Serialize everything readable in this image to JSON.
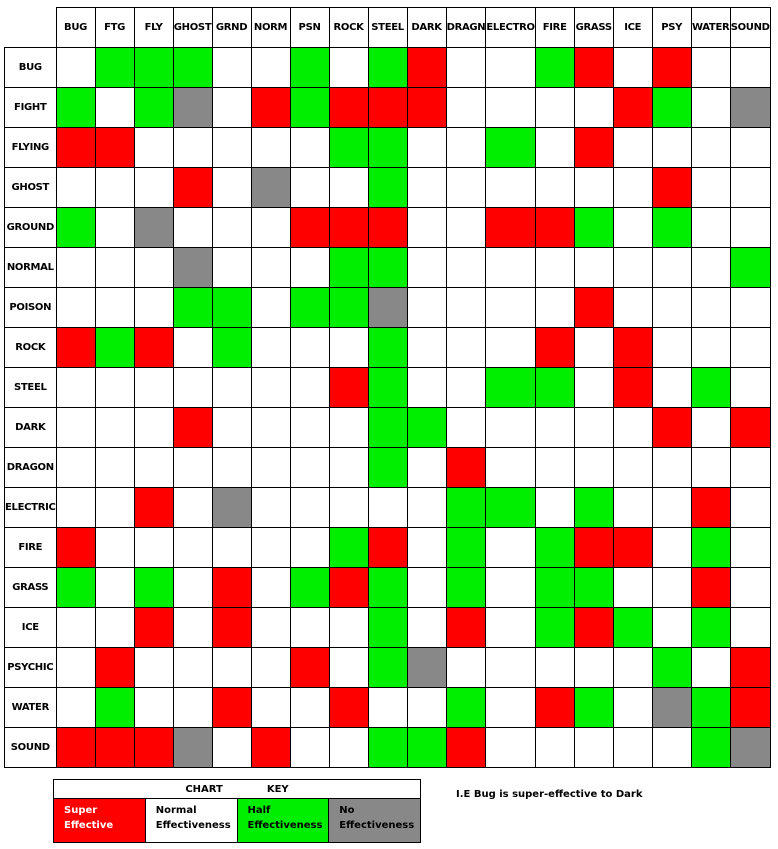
{
  "columns": [
    "BUG",
    "FTG",
    "FLY",
    "GHOST",
    "GRND",
    "NORM",
    "PSN",
    "ROCK",
    "STEEL",
    "DARK",
    "DRAGN",
    "ELECTRO",
    "FIRE",
    "GRASS",
    "ICE",
    "PSY",
    "WATER",
    "SOUND"
  ],
  "rows": [
    {
      "label": "BUG",
      "cells": [
        "n",
        "h",
        "h",
        "h",
        "n",
        "n",
        "h",
        "n",
        "h",
        "s",
        "n",
        "n",
        "h",
        "s",
        "n",
        "s",
        "n",
        "n"
      ]
    },
    {
      "label": "FIGHT",
      "cells": [
        "h",
        "n",
        "h",
        "z",
        "n",
        "s",
        "h",
        "s",
        "s",
        "s",
        "n",
        "n",
        "n",
        "n",
        "s",
        "h",
        "n",
        "z"
      ]
    },
    {
      "label": "FLYING",
      "cells": [
        "s",
        "s",
        "n",
        "n",
        "n",
        "n",
        "n",
        "h",
        "h",
        "n",
        "n",
        "h",
        "n",
        "s",
        "n",
        "n",
        "n",
        "n"
      ]
    },
    {
      "label": "GHOST",
      "cells": [
        "n",
        "n",
        "n",
        "s",
        "n",
        "z",
        "n",
        "n",
        "h",
        "n",
        "n",
        "n",
        "n",
        "n",
        "n",
        "s",
        "n",
        "n"
      ]
    },
    {
      "label": "GROUND",
      "cells": [
        "h",
        "n",
        "z",
        "n",
        "n",
        "n",
        "s",
        "s",
        "s",
        "n",
        "n",
        "s",
        "s",
        "h",
        "n",
        "h",
        "n",
        "n"
      ]
    },
    {
      "label": "NORMAL",
      "cells": [
        "n",
        "n",
        "n",
        "z",
        "n",
        "n",
        "n",
        "h",
        "h",
        "n",
        "n",
        "n",
        "n",
        "n",
        "n",
        "n",
        "n",
        "h"
      ]
    },
    {
      "label": "POISON",
      "cells": [
        "n",
        "n",
        "n",
        "h",
        "h",
        "n",
        "h",
        "h",
        "z",
        "n",
        "n",
        "n",
        "n",
        "s",
        "n",
        "n",
        "n",
        "n"
      ]
    },
    {
      "label": "ROCK",
      "cells": [
        "s",
        "h",
        "s",
        "n",
        "h",
        "n",
        "n",
        "n",
        "h",
        "n",
        "n",
        "n",
        "s",
        "n",
        "s",
        "n",
        "n",
        "n"
      ]
    },
    {
      "label": "STEEL",
      "cells": [
        "n",
        "n",
        "n",
        "n",
        "n",
        "n",
        "n",
        "s",
        "h",
        "n",
        "n",
        "h",
        "h",
        "n",
        "s",
        "n",
        "h",
        "n"
      ]
    },
    {
      "label": "DARK",
      "cells": [
        "n",
        "n",
        "n",
        "s",
        "n",
        "n",
        "n",
        "n",
        "h",
        "h",
        "n",
        "n",
        "n",
        "n",
        "n",
        "s",
        "n",
        "s"
      ]
    },
    {
      "label": "DRAGON",
      "cells": [
        "n",
        "n",
        "n",
        "n",
        "n",
        "n",
        "n",
        "n",
        "h",
        "n",
        "s",
        "n",
        "n",
        "n",
        "n",
        "n",
        "n",
        "n"
      ]
    },
    {
      "label": "ELECTRIC",
      "cells": [
        "n",
        "n",
        "s",
        "n",
        "z",
        "n",
        "n",
        "n",
        "n",
        "n",
        "h",
        "h",
        "n",
        "h",
        "n",
        "n",
        "s",
        "n"
      ]
    },
    {
      "label": "FIRE",
      "cells": [
        "s",
        "n",
        "n",
        "n",
        "n",
        "n",
        "n",
        "h",
        "s",
        "n",
        "h",
        "n",
        "h",
        "s",
        "s",
        "n",
        "h",
        "n"
      ]
    },
    {
      "label": "GRASS",
      "cells": [
        "h",
        "n",
        "h",
        "n",
        "s",
        "n",
        "h",
        "s",
        "h",
        "n",
        "h",
        "n",
        "h",
        "h",
        "n",
        "n",
        "s",
        "n"
      ]
    },
    {
      "label": "ICE",
      "cells": [
        "n",
        "n",
        "s",
        "n",
        "s",
        "n",
        "n",
        "n",
        "h",
        "n",
        "s",
        "n",
        "h",
        "s",
        "h",
        "n",
        "h",
        "n"
      ]
    },
    {
      "label": "PSYCHIC",
      "cells": [
        "n",
        "s",
        "n",
        "n",
        "n",
        "n",
        "s",
        "n",
        "h",
        "z",
        "n",
        "n",
        "n",
        "n",
        "n",
        "h",
        "n",
        "s"
      ]
    },
    {
      "label": "WATER",
      "cells": [
        "n",
        "h",
        "n",
        "n",
        "s",
        "n",
        "n",
        "s",
        "n",
        "n",
        "h",
        "n",
        "s",
        "h",
        "n",
        "z",
        "h",
        "s"
      ]
    },
    {
      "label": "SOUND",
      "cells": [
        "s",
        "s",
        "s",
        "z",
        "n",
        "s",
        "n",
        "n",
        "h",
        "h",
        "s",
        "n",
        "n",
        "n",
        "n",
        "n",
        "h",
        "z"
      ]
    }
  ],
  "legend": {
    "title_left": "CHART",
    "title_right": "KEY",
    "super": "Super Effective",
    "normal": "Normal Effectiveness",
    "half": "Half Effectiveness",
    "none": "No Effectiveness"
  },
  "note": "I.E Bug is super-effective to Dark",
  "colors": {
    "super": "#ff0000",
    "half": "#00ee00",
    "none": "#888888",
    "normal": "#ffffff"
  }
}
